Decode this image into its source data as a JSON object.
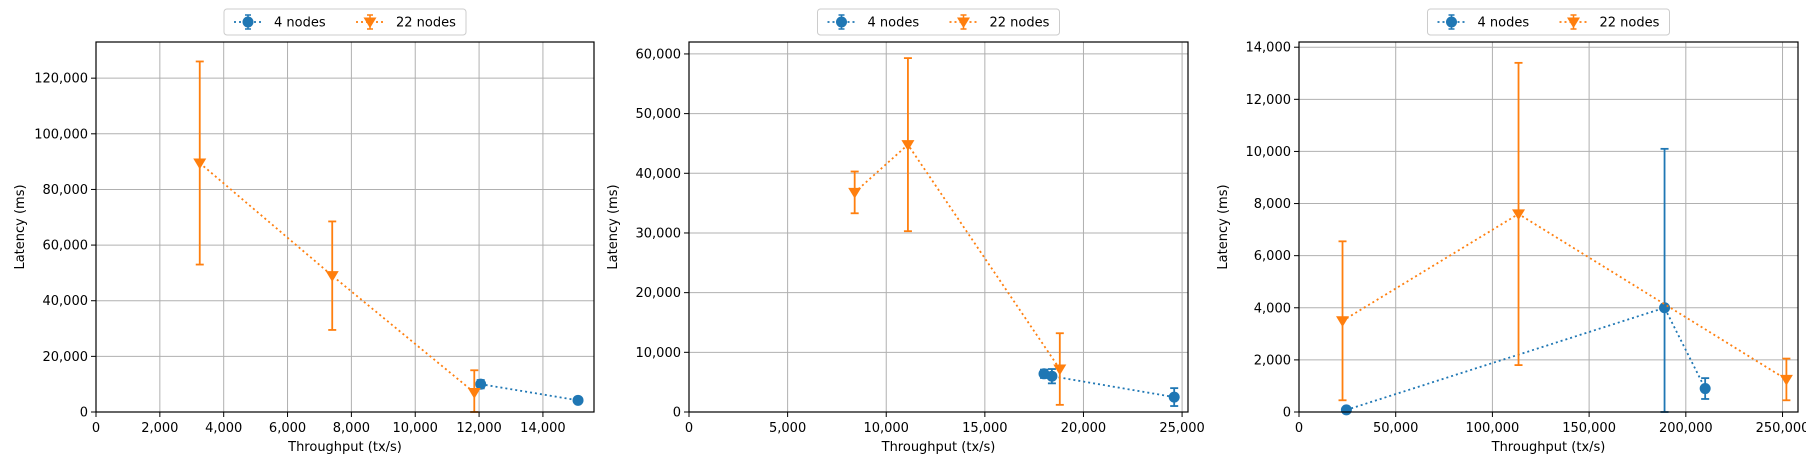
{
  "chart_data": [
    {
      "type": "line",
      "xlabel": "Throughput (tx/s)",
      "ylabel": "Latency (ms)",
      "xlim": [
        0,
        15600
      ],
      "ylim": [
        0,
        133000
      ],
      "xticks": [
        0,
        2000,
        4000,
        6000,
        8000,
        10000,
        12000,
        14000
      ],
      "xtick_labels": [
        "0",
        "2,000",
        "4,000",
        "6,000",
        "8,000",
        "10,000",
        "12,000",
        "14,000"
      ],
      "yticks": [
        0,
        20000,
        40000,
        60000,
        80000,
        100000,
        120000
      ],
      "ytick_labels": [
        "0",
        "20,000",
        "40,000",
        "60,000",
        "80,000",
        "100,000",
        "120,000"
      ],
      "grid": true,
      "legend": "top-center",
      "series": [
        {
          "name": "4 nodes",
          "color": "#1f77b4",
          "marker": "circle",
          "linestyle": "dotted",
          "points": [
            {
              "x": 12050,
              "y": 10000,
              "err": 1500
            },
            {
              "x": 15100,
              "y": 4200,
              "err": 500
            }
          ]
        },
        {
          "name": "22 nodes",
          "color": "#ff7f0e",
          "marker": "triangle-down",
          "linestyle": "dotted",
          "points": [
            {
              "x": 3250,
              "y": 89500,
              "err": 36500
            },
            {
              "x": 7400,
              "y": 49000,
              "err": 19500
            },
            {
              "x": 11850,
              "y": 7000,
              "err": 8000
            }
          ]
        }
      ]
    },
    {
      "type": "line",
      "xlabel": "Throughput (tx/s)",
      "ylabel": "Latency (ms)",
      "xlim": [
        0,
        25300
      ],
      "ylim": [
        0,
        62000
      ],
      "xticks": [
        0,
        5000,
        10000,
        15000,
        20000,
        25000
      ],
      "xtick_labels": [
        "0",
        "5,000",
        "10,000",
        "15,000",
        "20,000",
        "25,000"
      ],
      "yticks": [
        0,
        10000,
        20000,
        30000,
        40000,
        50000,
        60000
      ],
      "ytick_labels": [
        "0",
        "10,000",
        "20,000",
        "30,000",
        "40,000",
        "50,000",
        "60,000"
      ],
      "grid": true,
      "legend": "top-center",
      "series": [
        {
          "name": "4 nodes",
          "color": "#1f77b4",
          "marker": "circle",
          "linestyle": "dotted",
          "points": [
            {
              "x": 18000,
              "y": 6400,
              "err": 700
            },
            {
              "x": 18400,
              "y": 6000,
              "err": 1200
            },
            {
              "x": 24600,
              "y": 2500,
              "err": 1500
            }
          ]
        },
        {
          "name": "22 nodes",
          "color": "#ff7f0e",
          "marker": "triangle-down",
          "linestyle": "dotted",
          "points": [
            {
              "x": 8400,
              "y": 36800,
              "err": 3500
            },
            {
              "x": 11100,
              "y": 44800,
              "err": 14500
            },
            {
              "x": 18800,
              "y": 7200,
              "err": 6000
            }
          ]
        }
      ]
    },
    {
      "type": "line",
      "xlabel": "Throughput (tx/s)",
      "ylabel": "Latency (ms)",
      "xlim": [
        0,
        258000
      ],
      "ylim": [
        0,
        14200
      ],
      "xticks": [
        0,
        50000,
        100000,
        150000,
        200000,
        250000
      ],
      "xtick_labels": [
        "0",
        "50,000",
        "100,000",
        "150,000",
        "200,000",
        "250,000"
      ],
      "yticks": [
        0,
        2000,
        4000,
        6000,
        8000,
        10000,
        12000,
        14000
      ],
      "ytick_labels": [
        "0",
        "2,000",
        "4,000",
        "6,000",
        "8,000",
        "10,000",
        "12,000",
        "14,000"
      ],
      "grid": true,
      "legend": "top-center",
      "series": [
        {
          "name": "4 nodes",
          "color": "#1f77b4",
          "marker": "circle",
          "linestyle": "dotted",
          "points": [
            {
              "x": 24500,
              "y": 80,
              "err": 60
            },
            {
              "x": 189000,
              "y": 4000,
              "err": 6100
            },
            {
              "x": 210000,
              "y": 900,
              "err": 400
            }
          ]
        },
        {
          "name": "22 nodes",
          "color": "#ff7f0e",
          "marker": "triangle-down",
          "linestyle": "dotted",
          "points": [
            {
              "x": 22500,
              "y": 3500,
              "err": 3050
            },
            {
              "x": 113500,
              "y": 7600,
              "err": 5800
            },
            {
              "x": 252000,
              "y": 1250,
              "err": 800
            }
          ]
        }
      ]
    }
  ]
}
